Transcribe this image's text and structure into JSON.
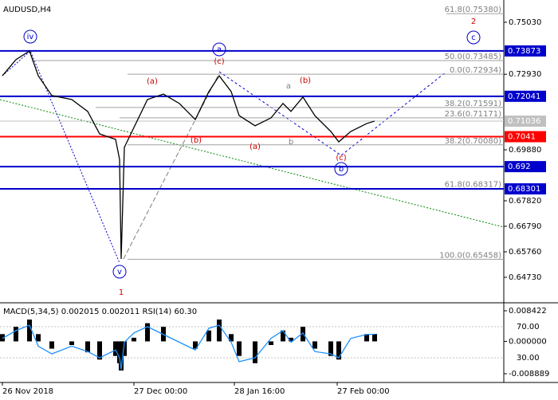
{
  "chart_data": [
    {
      "type": "line",
      "title": "AUDUSD,H4",
      "x": [
        3,
        20,
        37,
        48,
        65,
        90,
        110,
        125,
        145,
        150,
        152,
        156,
        168,
        185,
        205,
        225,
        245,
        262,
        275,
        290,
        300,
        320,
        340,
        355,
        365,
        380,
        395,
        415,
        425,
        440,
        460,
        470
      ],
      "series": [
        {
          "color": "#000000",
          "values": [
            0.7287,
            0.7352,
            0.7387,
            0.7287,
            0.7207,
            0.7191,
            0.7143,
            0.7052,
            0.703,
            0.6949,
            0.6547,
            0.6998,
            0.7078,
            0.7191,
            0.7213,
            0.7175,
            0.711,
            0.7223,
            0.7287,
            0.7223,
            0.7126,
            0.7085,
            0.7117,
            0.7175,
            0.7143,
            0.7201,
            0.7126,
            0.7062,
            0.702,
            0.7062,
            0.7094,
            0.7104
          ]
        }
      ],
      "xlim": [
        0,
        632
      ],
      "xticks": [
        {
          "value": 3,
          "label": "26 Nov 2018"
        },
        {
          "value": 168,
          "label": "27 Dec 00:00"
        },
        {
          "value": 294,
          "label": "28 Jan 16:00"
        },
        {
          "value": 423,
          "label": "27 Feb 00:00"
        }
      ],
      "ylim": [
        0.637,
        0.7593
      ],
      "yticks": [
        {
          "value": 0.7503,
          "label": "0.75030"
        },
        {
          "value": 0.7293,
          "label": "0.72930"
        },
        {
          "value": 0.6988,
          "label": "0.69880"
        },
        {
          "value": 0.6782,
          "label": "0.67820"
        },
        {
          "value": 0.6679,
          "label": "0.66790"
        },
        {
          "value": 0.6576,
          "label": "0.65760"
        },
        {
          "value": 0.6473,
          "label": "0.64730"
        }
      ],
      "levels": [
        {
          "value": 0.73873,
          "color": "#0000cc"
        },
        {
          "value": 0.72041,
          "color": "#0000cc"
        },
        {
          "value": 0.71036,
          "color": "#c0c0c0"
        },
        {
          "value": 0.7041,
          "color": "#ff0000"
        },
        {
          "value": 0.692,
          "color": "#0000cc"
        },
        {
          "value": 0.68301,
          "color": "#0000cc"
        }
      ],
      "fib_levels": [
        {
          "value": 0.7538,
          "label": "61.8(0.75380)"
        },
        {
          "value": 0.73485,
          "label": "50.0(0.73485)"
        },
        {
          "value": 0.72934,
          "label": "0.0(0.72934)"
        },
        {
          "value": 0.71591,
          "label": "38.2(0.71591)"
        },
        {
          "value": 0.71171,
          "label": "23.6(0.71171)"
        },
        {
          "value": 0.7008,
          "label": "38.2(0.70080)"
        },
        {
          "value": 0.68317,
          "label": "61.8(0.68317)"
        },
        {
          "value": 0.65458,
          "label": "100.0(0.65458)"
        }
      ],
      "wave_labels": [
        "iv",
        "v",
        "1",
        "a",
        "(c)",
        "(a)",
        "(b)",
        "(a)",
        "b",
        "a",
        "(b)",
        "(c)",
        "b",
        "2",
        "c"
      ]
    },
    {
      "type": "macd",
      "title": "MACD(5,34,5) 0.002015 0.002011 RSI(14) 60.30",
      "x": [
        3,
        20,
        37,
        48,
        65,
        90,
        110,
        125,
        145,
        150,
        152,
        156,
        168,
        185,
        205,
        225,
        245,
        262,
        275,
        290,
        300,
        320,
        340,
        355,
        365,
        380,
        395,
        415,
        425,
        440,
        460,
        470
      ],
      "series": [
        {
          "color": "#000000",
          "values": [
            0.002,
            0.004,
            0.006,
            0.002,
            -0.002,
            -0.001,
            -0.003,
            -0.005,
            -0.004,
            -0.006,
            -0.008,
            -0.004,
            0.001,
            0.005,
            0.004,
            0.0,
            -0.002,
            0.003,
            0.006,
            0.002,
            -0.004,
            -0.006,
            -0.001,
            0.003,
            0.001,
            0.004,
            -0.002,
            -0.004,
            -0.005,
            0.0,
            0.002,
            0.002015
          ]
        },
        {
          "color": "#1e90ff",
          "axis": "y2",
          "values": [
            55,
            65,
            72,
            45,
            35,
            45,
            38,
            30,
            40,
            30,
            15,
            50,
            62,
            70,
            60,
            50,
            40,
            68,
            72,
            50,
            25,
            30,
            55,
            65,
            50,
            62,
            38,
            35,
            30,
            55,
            60,
            60.3
          ]
        }
      ],
      "ylim": [
        -0.011299,
        0.010613
      ],
      "yticks": [
        {
          "value": 0.008422,
          "label": "0.008422"
        },
        {
          "value": 0,
          "label": "0.000000"
        },
        {
          "value": -0.008889,
          "label": "-0.008889"
        }
      ],
      "y2lim": [
        -1.8,
        100.8
      ],
      "y2ticks": [
        {
          "value": 70,
          "label": "70.00"
        },
        {
          "value": 30,
          "label": "30.00"
        }
      ]
    }
  ]
}
